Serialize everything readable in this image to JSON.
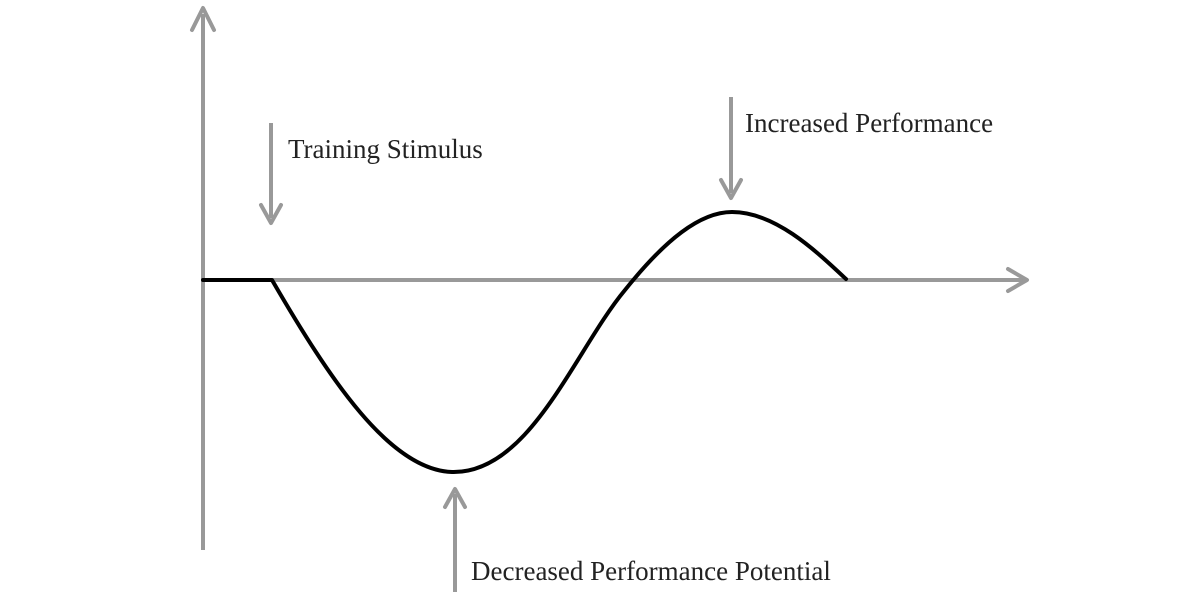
{
  "annotations": {
    "training_stimulus": "Training Stimulus",
    "increased_performance": "Increased Performance",
    "decreased_performance": "Decreased Performance Potential"
  },
  "colors": {
    "axis": "#999999",
    "curve": "#000000",
    "text": "#222222",
    "background": "#ffffff"
  }
}
